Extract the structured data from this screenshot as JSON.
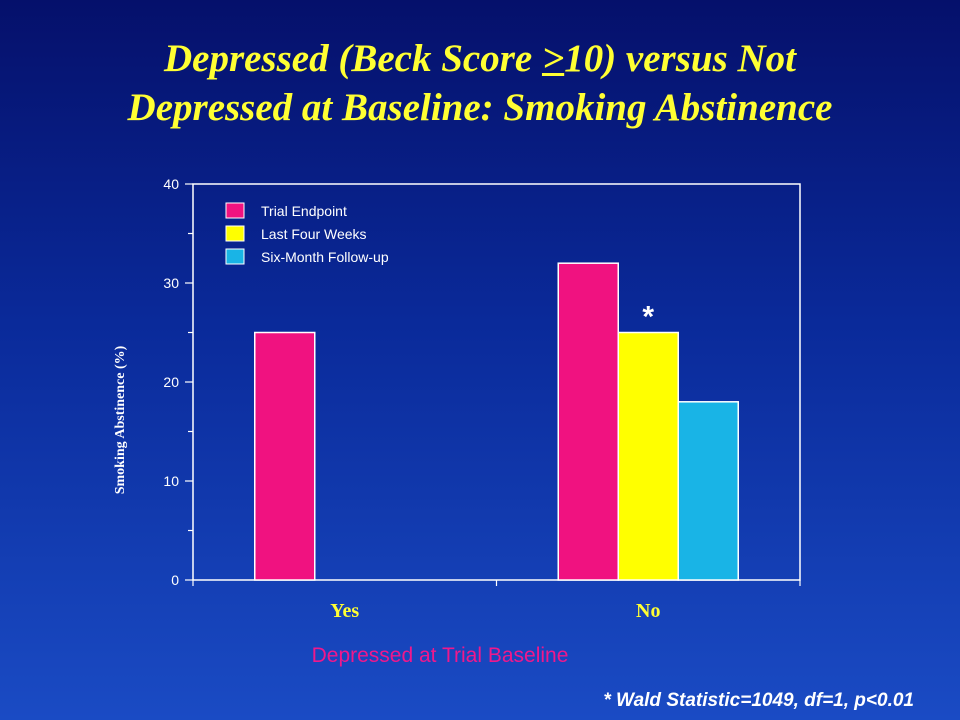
{
  "title": {
    "part1": "Depressed (Beck Score ",
    "geq": ">",
    "part2": "10) versus Not",
    "line2": "Depressed at Baseline: Smoking Abstinence"
  },
  "footnote": "* Wald Statistic=1049, df=1, p<0.01",
  "colors": {
    "title": "#ffff33",
    "trial_endpoint": "#f01280",
    "last_four_weeks": "#ffff00",
    "six_month": "#19b4e6",
    "xlabel": "#f0188c"
  },
  "chart_data": {
    "type": "bar",
    "categories": [
      "Yes",
      "No"
    ],
    "series": [
      {
        "name": "Trial Endpoint",
        "values": [
          25,
          32
        ]
      },
      {
        "name": "Last Four Weeks",
        "values": [
          null,
          25
        ]
      },
      {
        "name": "Six-Month Follow-up",
        "values": [
          null,
          18
        ]
      }
    ],
    "xlabel": "Depressed at Trial Baseline",
    "ylabel": "Smoking Abstinence (%)",
    "ylim": [
      0,
      40
    ],
    "yticks": [
      "0",
      "10",
      "20",
      "30",
      "40"
    ],
    "annotation": "*",
    "legend_position": "top-left",
    "grid": false
  }
}
